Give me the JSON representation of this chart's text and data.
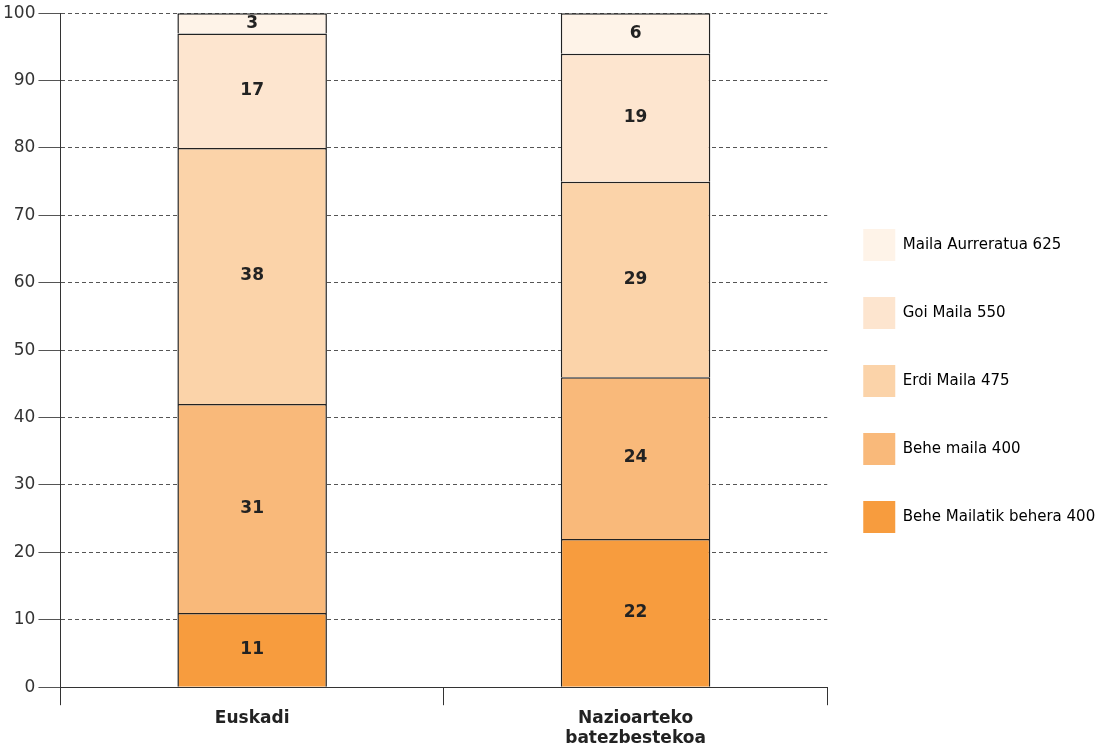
{
  "chart_data": {
    "type": "bar",
    "stacked": true,
    "categories": [
      "Euskadi",
      "Nazioarteko batezbestekoa"
    ],
    "series": [
      {
        "name": "Behe Mailatik behera 400",
        "color": "#f79c3e",
        "values": [
          11,
          22
        ]
      },
      {
        "name": "Behe maila 400",
        "color": "#f9b97a",
        "values": [
          31,
          24
        ]
      },
      {
        "name": "Erdi Maila 475",
        "color": "#fbd3a9",
        "values": [
          38,
          29
        ]
      },
      {
        "name": "Goi Maila 550",
        "color": "#fde5cf",
        "values": [
          17,
          19
        ]
      },
      {
        "name": "Maila Aurreratua 625",
        "color": "#fef3e8",
        "values": [
          3,
          6
        ]
      }
    ],
    "ylim": [
      0,
      100
    ],
    "yticks": [
      0,
      10,
      20,
      30,
      40,
      50,
      60,
      70,
      80,
      90,
      100
    ],
    "grid": "y",
    "legend": "right",
    "data_labels": true
  }
}
